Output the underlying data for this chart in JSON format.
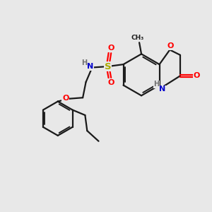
{
  "bg_color": "#e8e8e8",
  "bond_color": "#1a1a1a",
  "atom_colors": {
    "O": "#ff0000",
    "N": "#0000cc",
    "S": "#aaaa00",
    "H": "#707070",
    "C": "#1a1a1a"
  },
  "figsize": [
    3.0,
    3.0
  ],
  "dpi": 100,
  "lw": 1.6,
  "fs": 7.5
}
